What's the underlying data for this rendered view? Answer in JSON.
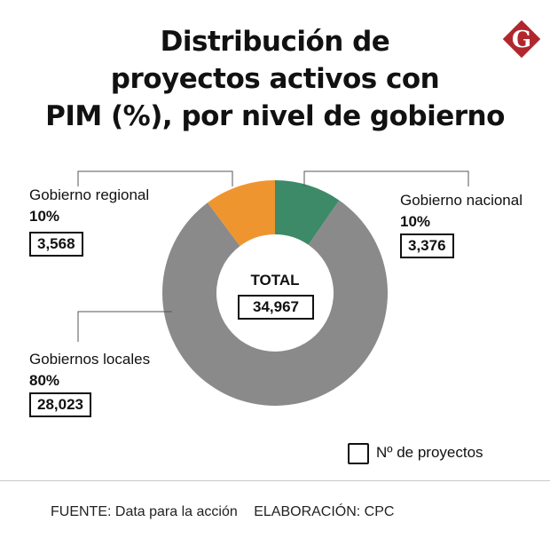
{
  "title_lines": [
    "Distribución de",
    "proyectos activos con",
    "PIM (%), por nivel de gobierno"
  ],
  "logo_letter": "G",
  "logo_color": "#b0272d",
  "chart_data": {
    "type": "pie",
    "donut": true,
    "slices": [
      {
        "label": "Gobierno nacional",
        "percent": "10%",
        "count": "3,376",
        "value": 3376,
        "color": "#3d8a68"
      },
      {
        "label": "Gobiernos locales",
        "percent": "80%",
        "count": "28,023",
        "value": 28023,
        "color": "#8a8a8a"
      },
      {
        "label": "Gobierno regional",
        "percent": "10%",
        "count": "3,568",
        "value": 3568,
        "color": "#ef9530"
      }
    ],
    "total_label": "TOTAL",
    "total": "34,967",
    "legend": "Nº de proyectos"
  },
  "footer": {
    "source": "FUENTE: Data para la acción",
    "credit": "ELABORACIÓN: CPC"
  }
}
